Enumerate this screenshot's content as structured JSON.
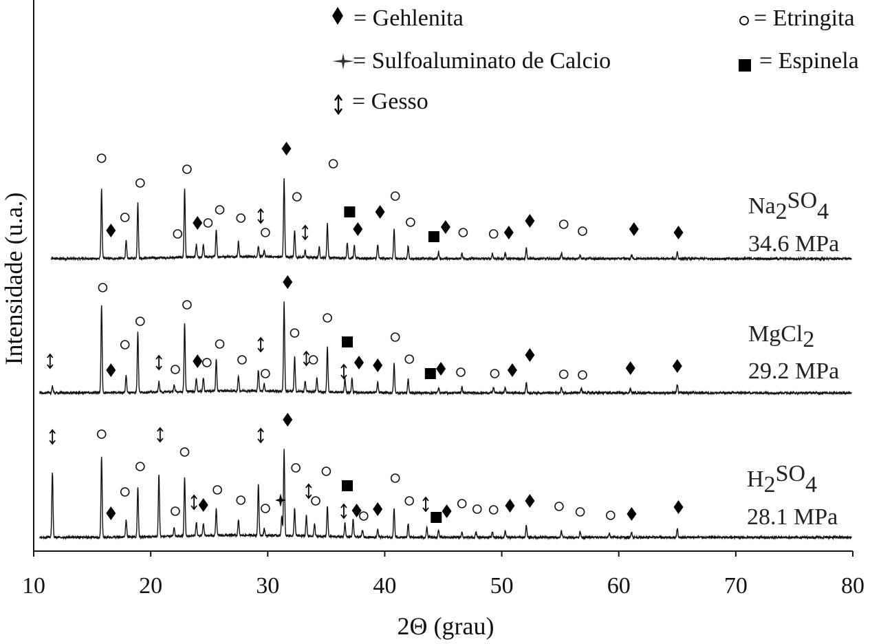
{
  "chart_data": {
    "type": "line",
    "title": "",
    "xlabel": "2Θ  (grau)",
    "ylabel": "Intensidade (u.a.)",
    "xlim": [
      10,
      80
    ],
    "x_ticks": [
      10,
      20,
      30,
      40,
      50,
      60,
      70,
      80
    ],
    "grid": false,
    "legend": [
      {
        "symbol": "diamond",
        "label": "= Gehlenita"
      },
      {
        "symbol": "star",
        "label": "= Sulfoaluminato de Calcio"
      },
      {
        "symbol": "updown-arrow",
        "label": "=  Gesso"
      },
      {
        "symbol": "circle",
        "label": "= Etringita"
      },
      {
        "symbol": "square",
        "label": "= Espinela"
      }
    ],
    "series": [
      {
        "name": "Na2SO4",
        "label_main": "Na",
        "label_sub1": "2",
        "label_mid": "SO",
        "label_sub2": "4",
        "strength": "34.6 MPa",
        "baseline": 0,
        "peaks": [
          [
            15.8,
            100
          ],
          [
            17.9,
            25
          ],
          [
            18.9,
            80
          ],
          [
            22.9,
            100
          ],
          [
            23.9,
            18
          ],
          [
            24.5,
            18
          ],
          [
            25.6,
            40
          ],
          [
            27.5,
            22
          ],
          [
            29.2,
            16
          ],
          [
            29.7,
            10
          ],
          [
            31.4,
            115
          ],
          [
            32.3,
            40
          ],
          [
            33.2,
            10
          ],
          [
            34.4,
            15
          ],
          [
            35.1,
            50
          ],
          [
            36.8,
            22
          ],
          [
            37.4,
            18
          ],
          [
            39.4,
            20
          ],
          [
            40.8,
            42
          ],
          [
            42,
            18
          ],
          [
            44.6,
            10
          ],
          [
            46.6,
            8
          ],
          [
            49.2,
            8
          ],
          [
            50.3,
            8
          ],
          [
            52.1,
            15
          ],
          [
            55.1,
            8
          ],
          [
            56.7,
            6
          ],
          [
            61.1,
            6
          ],
          [
            65,
            10
          ]
        ]
      },
      {
        "name": "MgCl2",
        "label_main": "MgCl",
        "label_sub1": "2",
        "label_mid": "",
        "label_sub2": "",
        "strength": "29.2 MPa",
        "baseline": 1,
        "peaks": [
          [
            11.6,
            10
          ],
          [
            15.8,
            128
          ],
          [
            17.9,
            25
          ],
          [
            18.9,
            88
          ],
          [
            20.7,
            15
          ],
          [
            22,
            10
          ],
          [
            22.9,
            100
          ],
          [
            23.9,
            20
          ],
          [
            24.5,
            20
          ],
          [
            25.6,
            45
          ],
          [
            27.5,
            22
          ],
          [
            29.2,
            30
          ],
          [
            29.7,
            10
          ],
          [
            31.4,
            130
          ],
          [
            32.3,
            50
          ],
          [
            33.2,
            15
          ],
          [
            34.2,
            20
          ],
          [
            35.1,
            65
          ],
          [
            36.6,
            20
          ],
          [
            37.2,
            20
          ],
          [
            39.4,
            15
          ],
          [
            40.8,
            42
          ],
          [
            42,
            20
          ],
          [
            44.6,
            8
          ],
          [
            46.6,
            8
          ],
          [
            49.3,
            8
          ],
          [
            50.3,
            8
          ],
          [
            52.1,
            15
          ],
          [
            55.1,
            8
          ],
          [
            56.8,
            6
          ],
          [
            61,
            6
          ],
          [
            65,
            12
          ]
        ]
      },
      {
        "name": "H2SO4",
        "label_main": "H",
        "label_sub1": "2",
        "label_mid": "SO",
        "label_sub2": "4",
        "strength": "28.1 MPa",
        "baseline": 2,
        "peaks": [
          [
            11.6,
            95
          ],
          [
            15.8,
            118
          ],
          [
            17.9,
            25
          ],
          [
            18.9,
            72
          ],
          [
            20.7,
            90
          ],
          [
            22,
            12
          ],
          [
            22.9,
            85
          ],
          [
            23.9,
            20
          ],
          [
            24.5,
            18
          ],
          [
            25.6,
            38
          ],
          [
            27.5,
            22
          ],
          [
            29.2,
            75
          ],
          [
            29.7,
            10
          ],
          [
            31.2,
            28
          ],
          [
            31.4,
            125
          ],
          [
            32.3,
            40
          ],
          [
            33.3,
            30
          ],
          [
            34,
            18
          ],
          [
            35.1,
            45
          ],
          [
            36.6,
            20
          ],
          [
            37.3,
            25
          ],
          [
            38.1,
            10
          ],
          [
            39.4,
            12
          ],
          [
            40.8,
            42
          ],
          [
            42,
            20
          ],
          [
            43.6,
            15
          ],
          [
            44.6,
            10
          ],
          [
            46.6,
            8
          ],
          [
            47.8,
            8
          ],
          [
            49.2,
            8
          ],
          [
            50.3,
            10
          ],
          [
            52.1,
            18
          ],
          [
            55.1,
            10
          ],
          [
            56.7,
            8
          ],
          [
            59.2,
            6
          ],
          [
            61.1,
            8
          ],
          [
            65,
            13
          ]
        ]
      }
    ],
    "annotations": [
      {
        "series": 0,
        "symbol": "circle",
        "x": 15.8,
        "y": 148
      },
      {
        "series": 0,
        "symbol": "diamond",
        "x": 16.6,
        "y": 43
      },
      {
        "series": 0,
        "symbol": "circle",
        "x": 17.8,
        "y": 62
      },
      {
        "series": 0,
        "symbol": "circle",
        "x": 19.1,
        "y": 112
      },
      {
        "series": 0,
        "symbol": "circle",
        "x": 22.3,
        "y": 38
      },
      {
        "series": 0,
        "symbol": "circle",
        "x": 23.1,
        "y": 132
      },
      {
        "series": 0,
        "symbol": "diamond",
        "x": 24,
        "y": 54
      },
      {
        "series": 0,
        "symbol": "circle",
        "x": 24.9,
        "y": 54
      },
      {
        "series": 0,
        "symbol": "circle",
        "x": 25.9,
        "y": 73
      },
      {
        "series": 0,
        "symbol": "circle",
        "x": 27.7,
        "y": 61
      },
      {
        "series": 0,
        "symbol": "updown-arrow",
        "x": 29.4,
        "y": 64
      },
      {
        "series": 0,
        "symbol": "circle",
        "x": 29.8,
        "y": 40
      },
      {
        "series": 0,
        "symbol": "diamond",
        "x": 31.6,
        "y": 162
      },
      {
        "series": 0,
        "symbol": "circle",
        "x": 32.5,
        "y": 92
      },
      {
        "series": 0,
        "symbol": "updown-arrow",
        "x": 33.2,
        "y": 40
      },
      {
        "series": 0,
        "symbol": "circle",
        "x": 35.6,
        "y": 140
      },
      {
        "series": 0,
        "symbol": "square",
        "x": 37,
        "y": 70
      },
      {
        "series": 0,
        "symbol": "diamond",
        "x": 37.7,
        "y": 45
      },
      {
        "series": 0,
        "symbol": "diamond",
        "x": 39.6,
        "y": 70
      },
      {
        "series": 0,
        "symbol": "circle",
        "x": 40.9,
        "y": 93
      },
      {
        "series": 0,
        "symbol": "circle",
        "x": 42.2,
        "y": 55
      },
      {
        "series": 0,
        "symbol": "square",
        "x": 44.2,
        "y": 34
      },
      {
        "series": 0,
        "symbol": "diamond",
        "x": 45.2,
        "y": 48
      },
      {
        "series": 0,
        "symbol": "circle",
        "x": 46.7,
        "y": 40
      },
      {
        "series": 0,
        "symbol": "circle",
        "x": 49.3,
        "y": 38
      },
      {
        "series": 0,
        "symbol": "diamond",
        "x": 50.6,
        "y": 40
      },
      {
        "series": 0,
        "symbol": "diamond",
        "x": 52.4,
        "y": 57
      },
      {
        "series": 0,
        "symbol": "circle",
        "x": 55.3,
        "y": 52
      },
      {
        "series": 0,
        "symbol": "circle",
        "x": 56.9,
        "y": 42
      },
      {
        "series": 0,
        "symbol": "diamond",
        "x": 61.3,
        "y": 45
      },
      {
        "series": 0,
        "symbol": "diamond",
        "x": 65.1,
        "y": 40
      },
      {
        "series": 1,
        "symbol": "updown-arrow",
        "x": 11.4,
        "y": 48
      },
      {
        "series": 1,
        "symbol": "circle",
        "x": 15.9,
        "y": 155
      },
      {
        "series": 1,
        "symbol": "diamond",
        "x": 16.6,
        "y": 35
      },
      {
        "series": 1,
        "symbol": "circle",
        "x": 17.8,
        "y": 72
      },
      {
        "series": 1,
        "symbol": "circle",
        "x": 19.1,
        "y": 106
      },
      {
        "series": 1,
        "symbol": "updown-arrow",
        "x": 20.7,
        "y": 46
      },
      {
        "series": 1,
        "symbol": "circle",
        "x": 22.1,
        "y": 36
      },
      {
        "series": 1,
        "symbol": "circle",
        "x": 23.1,
        "y": 130
      },
      {
        "series": 1,
        "symbol": "diamond",
        "x": 24,
        "y": 48
      },
      {
        "series": 1,
        "symbol": "circle",
        "x": 24.8,
        "y": 46
      },
      {
        "series": 1,
        "symbol": "circle",
        "x": 25.9,
        "y": 73
      },
      {
        "series": 1,
        "symbol": "circle",
        "x": 27.8,
        "y": 50
      },
      {
        "series": 1,
        "symbol": "updown-arrow",
        "x": 29.4,
        "y": 72
      },
      {
        "series": 1,
        "symbol": "circle",
        "x": 29.8,
        "y": 30
      },
      {
        "series": 1,
        "symbol": "diamond",
        "x": 31.7,
        "y": 163
      },
      {
        "series": 1,
        "symbol": "circle",
        "x": 32.3,
        "y": 89
      },
      {
        "series": 1,
        "symbol": "updown-arrow",
        "x": 33.3,
        "y": 52
      },
      {
        "series": 1,
        "symbol": "circle",
        "x": 33.9,
        "y": 50
      },
      {
        "series": 1,
        "symbol": "circle",
        "x": 35.1,
        "y": 111
      },
      {
        "series": 1,
        "symbol": "updown-arrow",
        "x": 36.5,
        "y": 33
      },
      {
        "series": 1,
        "symbol": "square",
        "x": 36.8,
        "y": 76
      },
      {
        "series": 1,
        "symbol": "diamond",
        "x": 37.8,
        "y": 46
      },
      {
        "series": 1,
        "symbol": "diamond",
        "x": 39.4,
        "y": 42
      },
      {
        "series": 1,
        "symbol": "circle",
        "x": 40.9,
        "y": 83
      },
      {
        "series": 1,
        "symbol": "circle",
        "x": 42.1,
        "y": 51
      },
      {
        "series": 1,
        "symbol": "square",
        "x": 43.9,
        "y": 30
      },
      {
        "series": 1,
        "symbol": "diamond",
        "x": 44.8,
        "y": 37
      },
      {
        "series": 1,
        "symbol": "circle",
        "x": 46.5,
        "y": 32
      },
      {
        "series": 1,
        "symbol": "circle",
        "x": 49.4,
        "y": 30
      },
      {
        "series": 1,
        "symbol": "diamond",
        "x": 50.9,
        "y": 35
      },
      {
        "series": 1,
        "symbol": "diamond",
        "x": 52.4,
        "y": 57
      },
      {
        "series": 1,
        "symbol": "circle",
        "x": 55.3,
        "y": 29
      },
      {
        "series": 1,
        "symbol": "circle",
        "x": 56.9,
        "y": 28
      },
      {
        "series": 1,
        "symbol": "diamond",
        "x": 61,
        "y": 38
      },
      {
        "series": 1,
        "symbol": "diamond",
        "x": 65,
        "y": 41
      },
      {
        "series": 2,
        "symbol": "updown-arrow",
        "x": 11.6,
        "y": 148
      },
      {
        "series": 2,
        "symbol": "circle",
        "x": 15.8,
        "y": 152
      },
      {
        "series": 2,
        "symbol": "diamond",
        "x": 16.6,
        "y": 37
      },
      {
        "series": 2,
        "symbol": "circle",
        "x": 17.8,
        "y": 68
      },
      {
        "series": 2,
        "symbol": "circle",
        "x": 19.1,
        "y": 105
      },
      {
        "series": 2,
        "symbol": "updown-arrow",
        "x": 20.8,
        "y": 151
      },
      {
        "series": 2,
        "symbol": "circle",
        "x": 22.1,
        "y": 40
      },
      {
        "series": 2,
        "symbol": "circle",
        "x": 22.9,
        "y": 126
      },
      {
        "series": 2,
        "symbol": "updown-arrow",
        "x": 23.7,
        "y": 53
      },
      {
        "series": 2,
        "symbol": "diamond",
        "x": 24.5,
        "y": 49
      },
      {
        "series": 2,
        "symbol": "circle",
        "x": 25.7,
        "y": 71
      },
      {
        "series": 2,
        "symbol": "circle",
        "x": 27.7,
        "y": 56
      },
      {
        "series": 2,
        "symbol": "updown-arrow",
        "x": 29.4,
        "y": 150
      },
      {
        "series": 2,
        "symbol": "circle",
        "x": 29.8,
        "y": 44
      },
      {
        "series": 2,
        "symbol": "star",
        "x": 31.1,
        "y": 56
      },
      {
        "series": 2,
        "symbol": "diamond",
        "x": 31.7,
        "y": 173
      },
      {
        "series": 2,
        "symbol": "circle",
        "x": 32.4,
        "y": 103
      },
      {
        "series": 2,
        "symbol": "updown-arrow",
        "x": 33.5,
        "y": 69
      },
      {
        "series": 2,
        "symbol": "circle",
        "x": 34.1,
        "y": 55
      },
      {
        "series": 2,
        "symbol": "circle",
        "x": 35,
        "y": 98
      },
      {
        "series": 2,
        "symbol": "updown-arrow",
        "x": 36.5,
        "y": 40
      },
      {
        "series": 2,
        "symbol": "square",
        "x": 36.8,
        "y": 77
      },
      {
        "series": 2,
        "symbol": "diamond",
        "x": 37.6,
        "y": 41
      },
      {
        "series": 2,
        "symbol": "circle",
        "x": 38.2,
        "y": 33
      },
      {
        "series": 2,
        "symbol": "diamond",
        "x": 39.4,
        "y": 43
      },
      {
        "series": 2,
        "symbol": "circle",
        "x": 40.9,
        "y": 88
      },
      {
        "series": 2,
        "symbol": "circle",
        "x": 42.1,
        "y": 55
      },
      {
        "series": 2,
        "symbol": "updown-arrow",
        "x": 43.5,
        "y": 50
      },
      {
        "series": 2,
        "symbol": "square",
        "x": 44.4,
        "y": 31
      },
      {
        "series": 2,
        "symbol": "diamond",
        "x": 45.3,
        "y": 40
      },
      {
        "series": 2,
        "symbol": "circle",
        "x": 46.6,
        "y": 51
      },
      {
        "series": 2,
        "symbol": "circle",
        "x": 47.9,
        "y": 43
      },
      {
        "series": 2,
        "symbol": "circle",
        "x": 49.3,
        "y": 42
      },
      {
        "series": 2,
        "symbol": "diamond",
        "x": 50.7,
        "y": 48
      },
      {
        "series": 2,
        "symbol": "diamond",
        "x": 52.4,
        "y": 55
      },
      {
        "series": 2,
        "symbol": "circle",
        "x": 54.9,
        "y": 47
      },
      {
        "series": 2,
        "symbol": "circle",
        "x": 56.7,
        "y": 39
      },
      {
        "series": 2,
        "symbol": "circle",
        "x": 59.3,
        "y": 34
      },
      {
        "series": 2,
        "symbol": "diamond",
        "x": 61.1,
        "y": 36
      },
      {
        "series": 2,
        "symbol": "diamond",
        "x": 65.1,
        "y": 46
      }
    ]
  }
}
